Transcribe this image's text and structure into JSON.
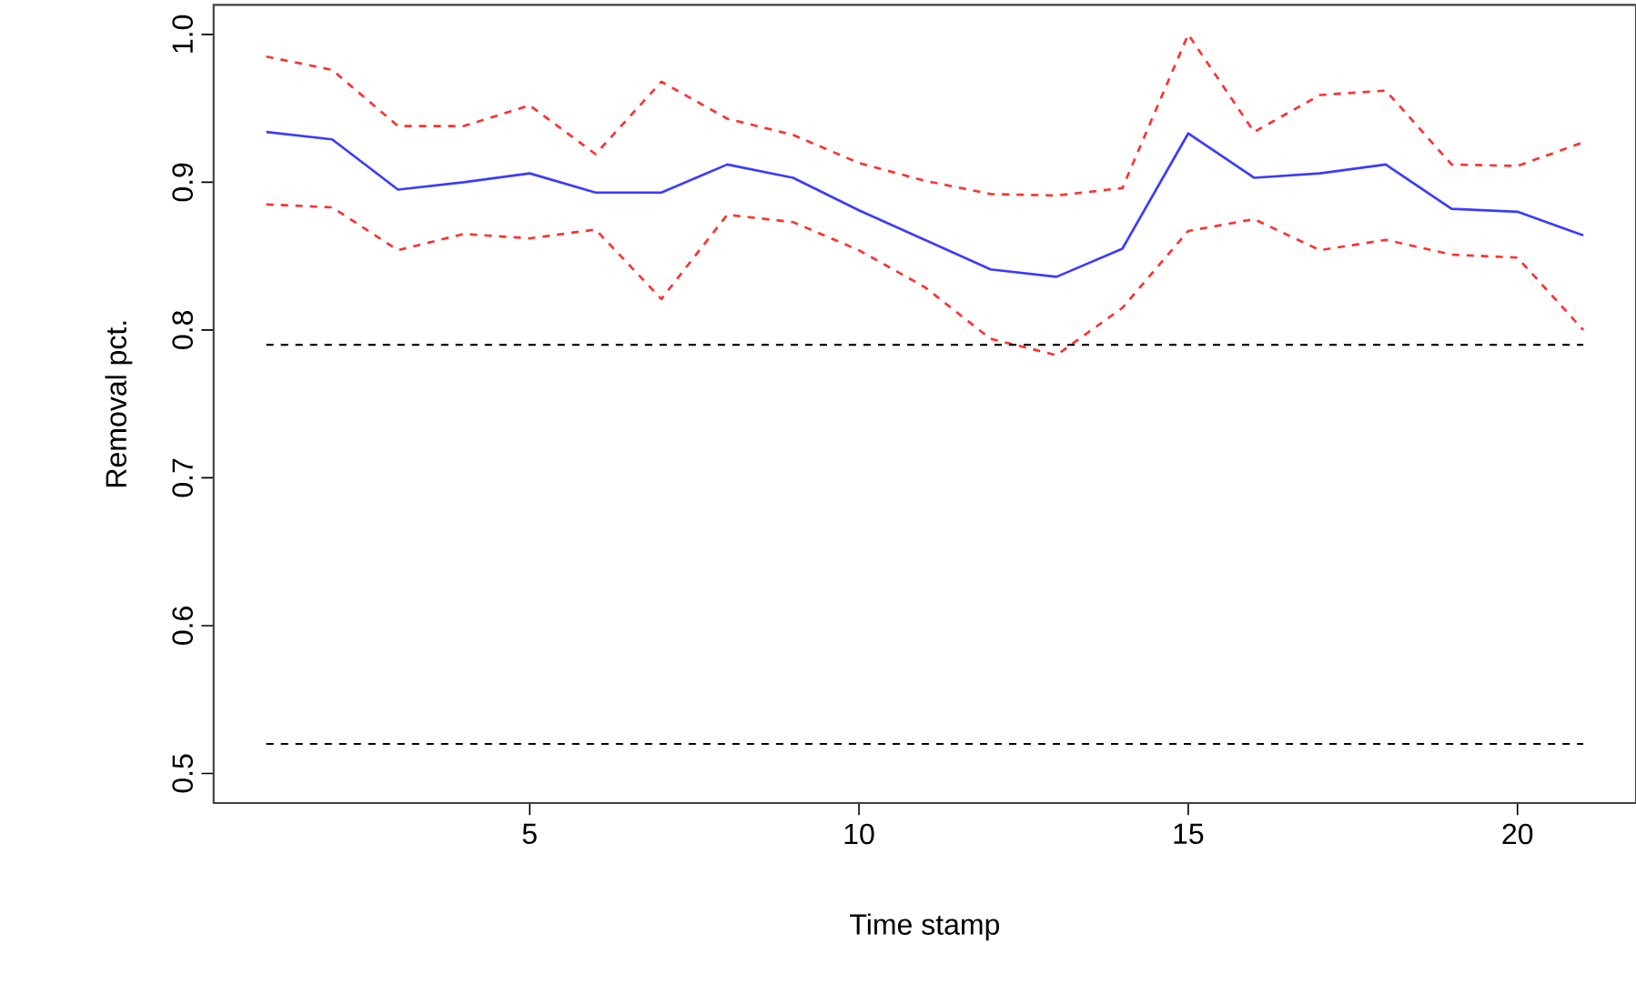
{
  "chart_data": {
    "type": "line",
    "xlabel": "Time stamp",
    "ylabel": "Removal pct.",
    "x": [
      1,
      2,
      3,
      4,
      5,
      6,
      7,
      8,
      9,
      10,
      11,
      12,
      13,
      14,
      15,
      16,
      17,
      18,
      19,
      20,
      21
    ],
    "series": [
      {
        "color": "#3b3bff",
        "line_style": "solid",
        "values": [
          0.934,
          0.929,
          0.895,
          0.9,
          0.906,
          0.893,
          0.893,
          0.912,
          0.903,
          0.881,
          0.861,
          0.841,
          0.836,
          0.855,
          0.933,
          0.903,
          0.906,
          0.912,
          0.882,
          0.88,
          0.864
        ]
      },
      {
        "color": "#ff3030",
        "line_style": "dashed",
        "values": [
          0.985,
          0.976,
          0.938,
          0.938,
          0.952,
          0.919,
          0.968,
          0.943,
          0.932,
          0.913,
          0.901,
          0.892,
          0.891,
          0.896,
          1.0,
          0.934,
          0.959,
          0.962,
          0.912,
          0.911,
          0.927
        ]
      },
      {
        "color": "#ff3030",
        "line_style": "dashed",
        "values": [
          0.885,
          0.883,
          0.854,
          0.865,
          0.862,
          0.868,
          0.821,
          0.878,
          0.873,
          0.854,
          0.829,
          0.794,
          0.783,
          0.815,
          0.867,
          0.875,
          0.854,
          0.861,
          0.851,
          0.849,
          0.8
        ]
      }
    ],
    "ref_lines": [
      {
        "axis": "y",
        "value": 0.79,
        "color": "#000000",
        "line_style": "dashed"
      },
      {
        "axis": "y",
        "value": 0.52,
        "color": "#000000",
        "line_style": "dashed"
      }
    ],
    "xlim": [
      0.2,
      21.8
    ],
    "ylim": [
      0.48,
      1.02
    ],
    "xticks": [
      5,
      10,
      15,
      20
    ],
    "yticks": [
      0.5,
      0.6,
      0.7,
      0.8,
      0.9,
      {
        "value": 1,
        "label": "1.0"
      }
    ],
    "grid": false,
    "marker": "none"
  }
}
